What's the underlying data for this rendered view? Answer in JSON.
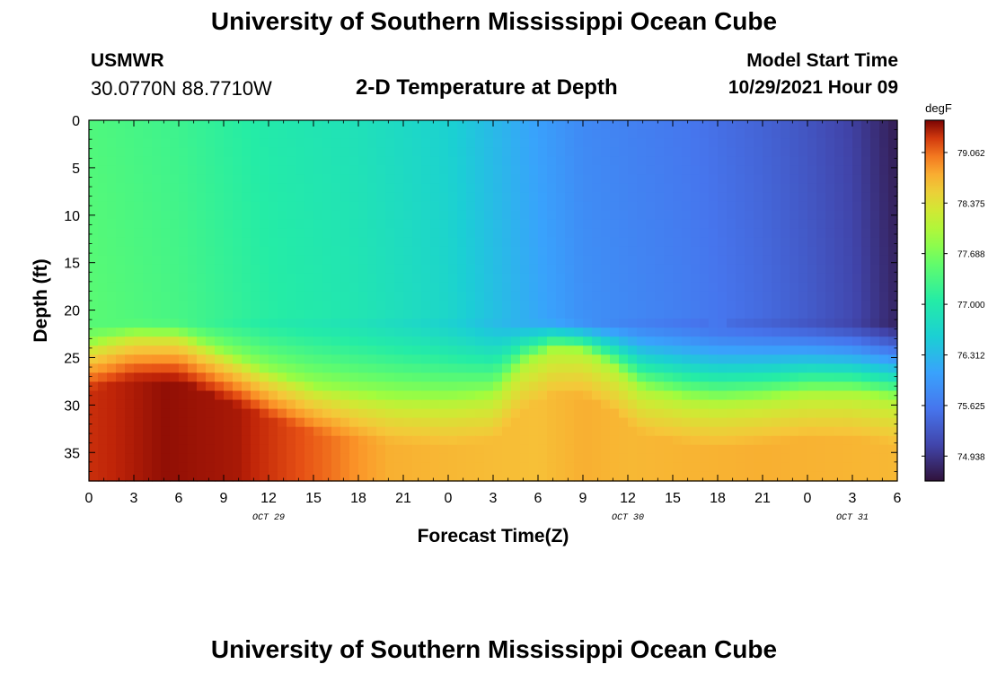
{
  "header": {
    "title": "University of Southern Mississippi Ocean Cube",
    "station": "USMWR",
    "coordinates": "30.0770N  88.7710W",
    "subtitle": "2-D Temperature at Depth",
    "model_start_label": "Model Start Time",
    "model_start_value": "10/29/2021 Hour 09"
  },
  "footer": {
    "title": "University of Southern Mississippi Ocean Cube"
  },
  "chart_data": {
    "type": "heatmap",
    "title": "2-D Temperature at Depth",
    "xlabel": "Forecast Time(Z)",
    "ylabel": "Depth (ft)",
    "x_range_hours": [
      0,
      54
    ],
    "y_range_ft": [
      0,
      38
    ],
    "y_reversed": true,
    "x_ticks": [
      {
        "hour": 0,
        "label": "0"
      },
      {
        "hour": 3,
        "label": "3"
      },
      {
        "hour": 6,
        "label": "6"
      },
      {
        "hour": 9,
        "label": "9"
      },
      {
        "hour": 12,
        "label": "12"
      },
      {
        "hour": 15,
        "label": "15"
      },
      {
        "hour": 18,
        "label": "18"
      },
      {
        "hour": 21,
        "label": "21"
      },
      {
        "hour": 24,
        "label": "0"
      },
      {
        "hour": 27,
        "label": "3"
      },
      {
        "hour": 30,
        "label": "6"
      },
      {
        "hour": 33,
        "label": "9"
      },
      {
        "hour": 36,
        "label": "12"
      },
      {
        "hour": 39,
        "label": "15"
      },
      {
        "hour": 42,
        "label": "18"
      },
      {
        "hour": 45,
        "label": "21"
      },
      {
        "hour": 48,
        "label": "0"
      },
      {
        "hour": 51,
        "label": "3"
      },
      {
        "hour": 54,
        "label": "6"
      }
    ],
    "y_ticks": [
      0,
      5,
      10,
      15,
      20,
      25,
      30,
      35
    ],
    "date_labels": [
      {
        "hour": 12,
        "label": "OCT 29"
      },
      {
        "hour": 36,
        "label": "OCT 30"
      },
      {
        "hour": 51,
        "label": "OCT 31"
      }
    ],
    "colorbar": {
      "unit": "degF",
      "range": [
        74.6,
        79.5
      ],
      "ticks": [
        "79.062",
        "78.375",
        "77.688",
        "77.000",
        "76.312",
        "75.625",
        "74.938"
      ],
      "tick_values": [
        79.062,
        78.375,
        77.688,
        77.0,
        76.312,
        75.625,
        74.938
      ]
    },
    "surface_layer_temp_by_hour": [
      [
        0,
        77.4
      ],
      [
        6,
        77.25
      ],
      [
        12,
        77.0
      ],
      [
        18,
        76.85
      ],
      [
        24,
        76.6
      ],
      [
        30,
        76.05
      ],
      [
        33,
        75.8
      ],
      [
        40,
        75.6
      ],
      [
        45,
        75.4
      ],
      [
        48,
        75.25
      ],
      [
        51,
        75.05
      ],
      [
        54,
        74.7
      ]
    ],
    "thermocline_top_depth_ft_by_hour": [
      [
        0,
        20.8
      ],
      [
        24,
        20.9
      ],
      [
        30,
        20.8
      ],
      [
        36,
        21.1
      ],
      [
        42,
        21.4
      ],
      [
        48,
        21.1
      ],
      [
        54,
        20.8
      ]
    ],
    "warm_layer_top_depth_ft_by_hour": [
      [
        0,
        23.5
      ],
      [
        3,
        22.4
      ],
      [
        6,
        22.5
      ],
      [
        9,
        24.5
      ],
      [
        12,
        26.5
      ],
      [
        15,
        28.0
      ],
      [
        18,
        28.8
      ],
      [
        21,
        29.2
      ],
      [
        24,
        29.3
      ],
      [
        27,
        28.8
      ],
      [
        29,
        25.5
      ],
      [
        31,
        24.0
      ],
      [
        33,
        24.2
      ],
      [
        35,
        25.8
      ],
      [
        37,
        28.2
      ],
      [
        40,
        29.2
      ],
      [
        42,
        29.5
      ],
      [
        45,
        29.2
      ],
      [
        48,
        28.6
      ],
      [
        51,
        28.6
      ],
      [
        54,
        29.3
      ]
    ],
    "deep_layer_temp_by_hour": [
      [
        0,
        79.3
      ],
      [
        5,
        79.45
      ],
      [
        10,
        79.4
      ],
      [
        16,
        79.05
      ],
      [
        20,
        78.75
      ],
      [
        24,
        78.7
      ],
      [
        30,
        78.65
      ],
      [
        33,
        78.75
      ],
      [
        36,
        78.7
      ],
      [
        45,
        78.75
      ],
      [
        54,
        78.7
      ]
    ]
  }
}
